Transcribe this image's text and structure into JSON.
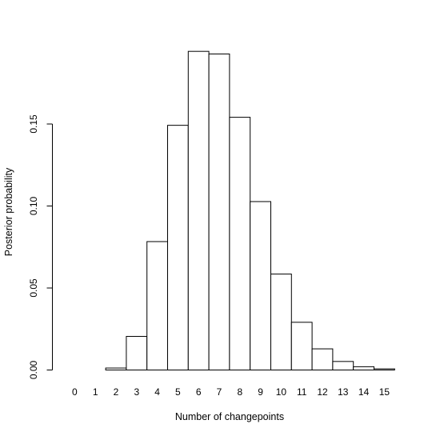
{
  "chart_data": {
    "type": "bar",
    "title": "",
    "xlabel": "Number of changepoints",
    "ylabel": "Posterior probability",
    "categories": [
      "0",
      "1",
      "2",
      "3",
      "4",
      "5",
      "6",
      "7",
      "8",
      "9",
      "10",
      "11",
      "12",
      "13",
      "14",
      "15"
    ],
    "values": [
      0.0,
      0.0,
      0.0012,
      0.0205,
      0.0783,
      0.1492,
      0.1943,
      0.1927,
      0.1541,
      0.1027,
      0.0585,
      0.0291,
      0.0129,
      0.0052,
      0.002,
      0.0007
    ],
    "ylim": [
      0,
      0.195
    ],
    "yticks": [
      0.0,
      0.05,
      0.1,
      0.15
    ],
    "ytick_labels": [
      "0.00",
      "0.05",
      "0.10",
      "0.15"
    ],
    "grid": false,
    "legend": "none",
    "bar_fill": "#ffffff",
    "bar_stroke": "#000000"
  }
}
